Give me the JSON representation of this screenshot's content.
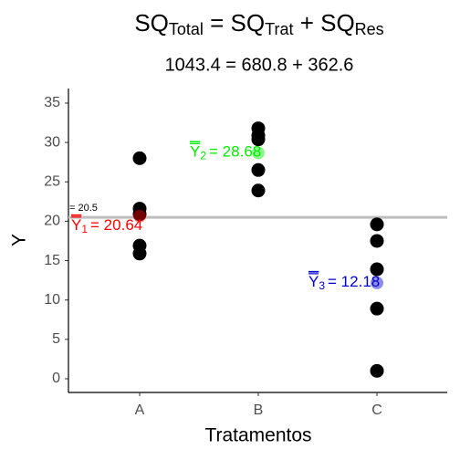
{
  "chart_data": {
    "type": "strip",
    "title_parts": [
      {
        "text": "SQ",
        "sub": "Total"
      },
      {
        "text": " = SQ",
        "sub": "Trat"
      },
      {
        "text": " + SQ",
        "sub": "Res"
      }
    ],
    "subtitle": "1043.4 = 680.8 + 362.6",
    "xlabel": "Tratamentos",
    "ylabel": "Y",
    "categories": [
      "A",
      "B",
      "C"
    ],
    "values": [
      [
        28.0,
        21.6,
        20.9,
        16.9,
        15.9
      ],
      [
        31.8,
        30.9,
        30.4,
        26.5,
        23.9
      ],
      [
        19.6,
        17.5,
        13.9,
        8.9,
        1.0
      ]
    ],
    "color": "#000000",
    "mean_values": [
      20.64,
      28.68,
      12.18
    ],
    "mean_symbol": "Y",
    "mean_subscripts": [
      "1",
      "2",
      "3"
    ],
    "mean_labels": [
      "= 20.64",
      "= 28.68",
      "= 12.18"
    ],
    "mean_colors": [
      "#ff0000",
      "#00ee00",
      "#0000cd"
    ],
    "grand_mean": 20.5,
    "grand_mean_label": "= 20.5",
    "grand_mean_color": "#bebebe",
    "ylim": [
      -1.74,
      36.85
    ],
    "yticks": [
      0,
      5,
      10,
      15,
      20,
      25,
      30,
      35
    ]
  }
}
